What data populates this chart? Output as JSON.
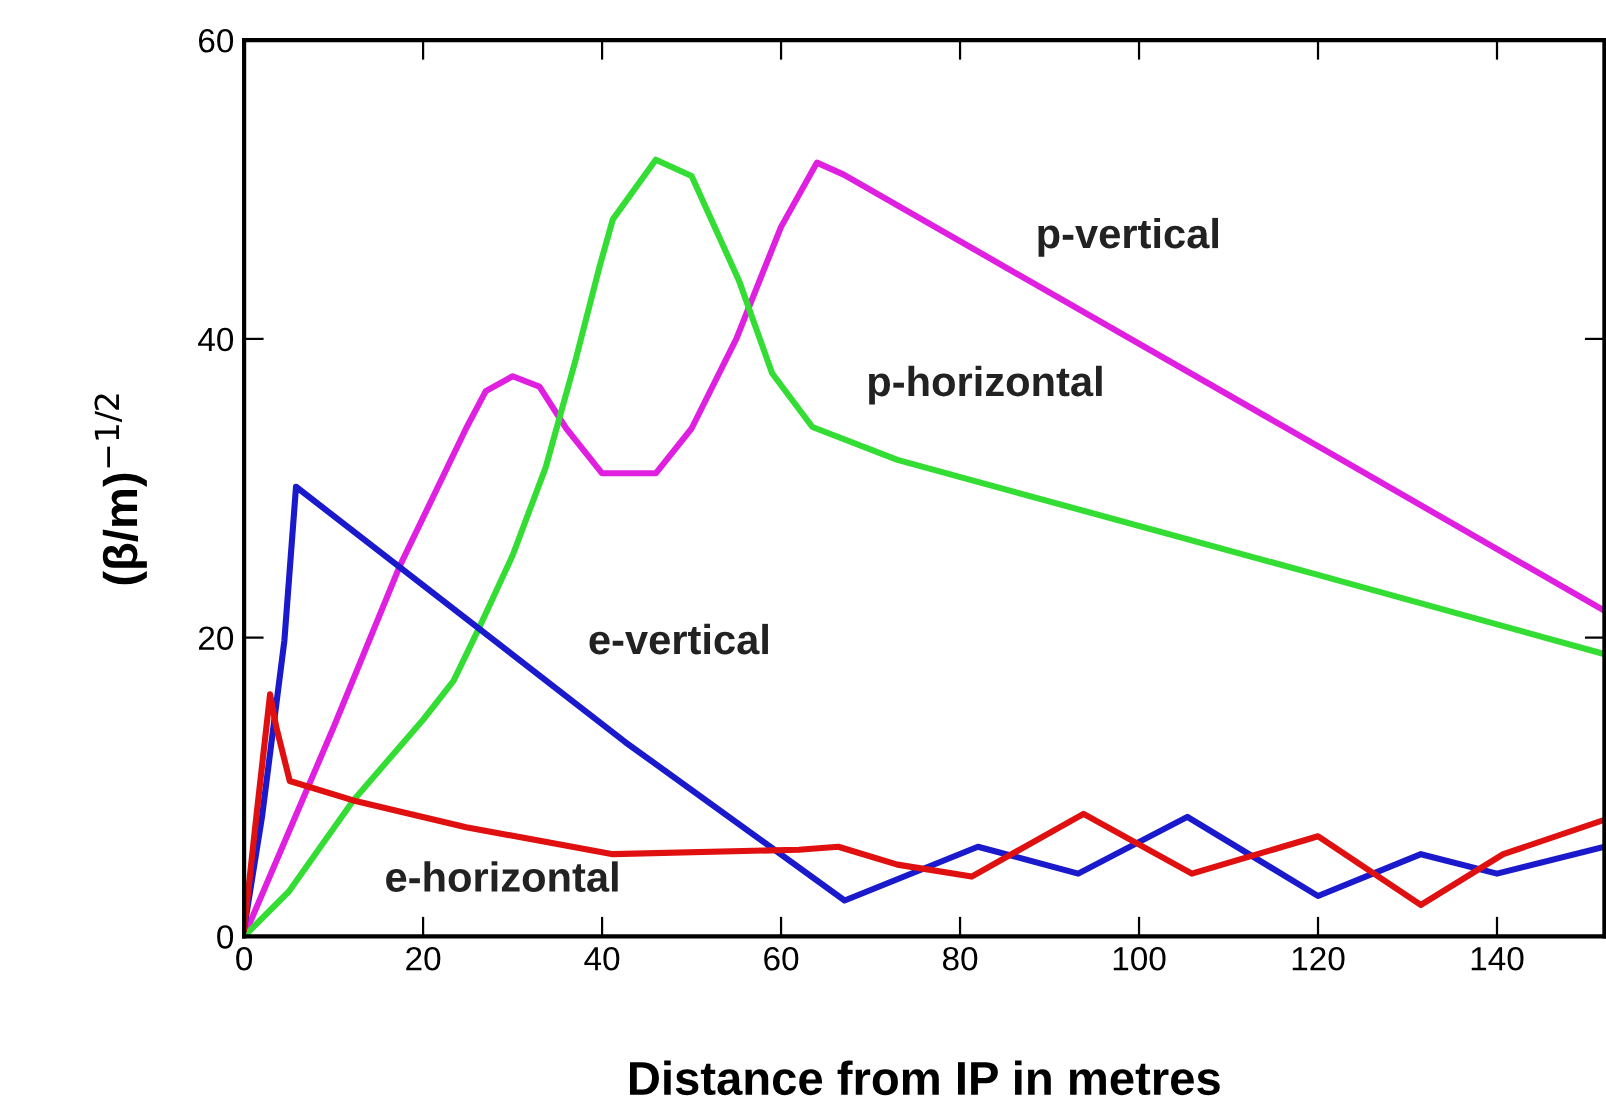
{
  "chart_data": {
    "type": "line",
    "xlabel": "Distance from IP in metres",
    "ylabel": "(β/m)$^{−1/2}$",
    "xlim": [
      0,
      152
    ],
    "ylim": [
      0,
      60
    ],
    "xticks": [
      0,
      20,
      40,
      60,
      80,
      100,
      120,
      140
    ],
    "yticks": [
      0,
      20,
      40,
      60
    ],
    "grid": false,
    "legend": false,
    "marker": "none",
    "line_style": "solid",
    "series": [
      {
        "name": "p-vertical",
        "color": "#e020e0",
        "x": [
          0,
          5,
          10,
          17.4,
          24.8,
          27,
          30,
          33,
          36,
          40,
          46,
          50,
          55,
          60,
          64,
          67,
          121.5,
          152
        ],
        "values": [
          0,
          7,
          14,
          24.8,
          34,
          36.5,
          37.5,
          36.8,
          34,
          31,
          31,
          34,
          40,
          47.5,
          51.8,
          51,
          32.3,
          21.8
        ]
      },
      {
        "name": "p-horizontal",
        "color": "#33dd33",
        "x": [
          0,
          5,
          12.2,
          20,
          23.4,
          26.3,
          30,
          33.7,
          37,
          39.7,
          41.2,
          46,
          50,
          55.3,
          59,
          63.5,
          73,
          120,
          152
        ],
        "values": [
          0,
          3,
          9.1,
          14.5,
          17.1,
          20.7,
          25.5,
          31.4,
          38.5,
          44.8,
          48,
          52,
          50.9,
          43.9,
          37.7,
          34.1,
          31.9,
          24.2,
          18.9
        ]
      },
      {
        "name": "e-vertical",
        "color": "#1a1acc",
        "x": [
          0,
          2,
          4.5,
          5.8,
          42.6,
          67.1,
          82,
          93.2,
          105.4,
          120,
          131.5,
          140,
          152
        ],
        "values": [
          0.5,
          8,
          19.8,
          30.1,
          13,
          2.4,
          6,
          4.2,
          8,
          2.7,
          5.5,
          4.2,
          6
        ]
      },
      {
        "name": "e-horizontal",
        "color": "#e01010",
        "x": [
          0,
          1.4,
          2.9,
          3.6,
          5.1,
          12.2,
          24.8,
          41.2,
          62,
          66.4,
          73,
          81.3,
          93.8,
          105.9,
          120,
          131.5,
          140.7,
          152
        ],
        "values": [
          0.5,
          8.2,
          16.2,
          14,
          10.4,
          9.1,
          7.3,
          5.5,
          5.8,
          6,
          4.8,
          4,
          8.2,
          4.2,
          6.7,
          2.1,
          5.5,
          7.8
        ]
      }
    ]
  }
}
